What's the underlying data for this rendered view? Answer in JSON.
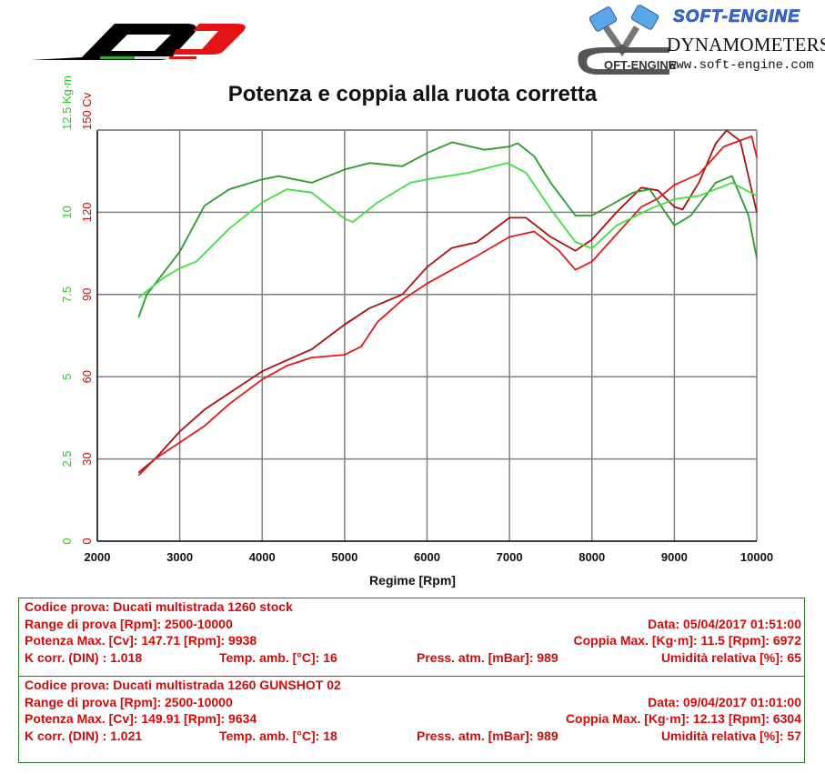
{
  "header": {
    "left_logo": "qd-exhaust-logo",
    "right_logo": {
      "brand": "SOFT-ENGINE",
      "subtitle": "DYNAMOMETERS",
      "url": "www.soft-engine.com",
      "emblem": "piston-v-engine-icon"
    }
  },
  "chart_data": {
    "type": "line",
    "title": "Potenza e coppia alla ruota corretta",
    "xlabel": "Regime [Rpm]",
    "ylabel_left_power": "Cv",
    "ylabel_left_torque": "Kg·m",
    "xlim": [
      2000,
      10000
    ],
    "ylim_power": [
      0,
      150
    ],
    "ylim_torque": [
      0,
      12.5
    ],
    "x_ticks": [
      2000,
      3000,
      4000,
      5000,
      6000,
      7000,
      8000,
      9000,
      10000
    ],
    "power_ticks": [
      0,
      30,
      60,
      90,
      120,
      150
    ],
    "torque_ticks": [
      0,
      2.5,
      5,
      7.5,
      10,
      12.5
    ],
    "grid": true,
    "colors": {
      "power_stock": "#e01a1a",
      "power_gunshot": "#a80f0f",
      "torque_stock": "#3ee03e",
      "torque_gunshot": "#2a9a2a",
      "torque_axis": "#22cc22",
      "power_axis": "#d10a0a"
    },
    "series": [
      {
        "name": "Potenza - Ducati multistrada 1260 GUNSHOT 02",
        "unit": "Cv",
        "x": [
          2500,
          2700,
          3000,
          3300,
          3600,
          4000,
          4300,
          4600,
          5000,
          5300,
          5700,
          6000,
          6300,
          6600,
          7000,
          7200,
          7500,
          7800,
          8000,
          8300,
          8600,
          8800,
          9000,
          9100,
          9300,
          9500,
          9634,
          9800,
          10000
        ],
        "values": [
          25,
          30,
          40,
          48,
          54,
          62,
          66,
          70,
          79,
          85,
          90,
          100,
          107,
          109,
          118,
          118,
          111,
          106,
          110,
          120,
          129,
          128,
          122,
          121,
          131,
          145,
          149.9,
          146,
          120
        ]
      },
      {
        "name": "Potenza - Ducati multistrada 1260 stock",
        "unit": "Cv",
        "x": [
          2500,
          2700,
          3000,
          3300,
          3600,
          4000,
          4300,
          4600,
          5000,
          5200,
          5400,
          5700,
          6000,
          6300,
          6600,
          7000,
          7300,
          7600,
          7800,
          8000,
          8300,
          8600,
          8800,
          9000,
          9300,
          9600,
          9938,
          10000
        ],
        "values": [
          24,
          30,
          36,
          42,
          50,
          59,
          64,
          67,
          68,
          71,
          80,
          88,
          94,
          99,
          104,
          111,
          113,
          106,
          99,
          102,
          112,
          122,
          125,
          130,
          134,
          144,
          147.7,
          140
        ]
      },
      {
        "name": "Coppia - Ducati multistrada 1260 GUNSHOT 02",
        "unit": "Kg·m",
        "x": [
          2500,
          2600,
          3000,
          3300,
          3600,
          4000,
          4200,
          4600,
          5000,
          5300,
          5700,
          6000,
          6304,
          6700,
          7000,
          7100,
          7300,
          7500,
          7800,
          8000,
          8500,
          8700,
          9000,
          9200,
          9500,
          9700,
          9900,
          10000
        ],
        "values": [
          6.8,
          7.5,
          8.8,
          10.2,
          10.7,
          11.0,
          11.1,
          10.9,
          11.3,
          11.5,
          11.4,
          11.8,
          12.13,
          11.9,
          12.0,
          12.1,
          11.7,
          10.9,
          9.9,
          9.9,
          10.6,
          10.7,
          9.6,
          9.9,
          10.9,
          11.1,
          9.9,
          8.6
        ]
      },
      {
        "name": "Coppia - Ducati multistrada 1260 stock",
        "unit": "Kg·m",
        "x": [
          2500,
          2800,
          3000,
          3200,
          3600,
          4000,
          4300,
          4600,
          5000,
          5100,
          5400,
          5800,
          6000,
          6500,
          6972,
          7200,
          7500,
          7800,
          8000,
          8300,
          8700,
          9000,
          9300,
          9700,
          10000
        ],
        "values": [
          7.4,
          8.0,
          8.3,
          8.5,
          9.5,
          10.3,
          10.7,
          10.6,
          9.8,
          9.7,
          10.3,
          10.9,
          11.0,
          11.2,
          11.5,
          11.2,
          10.1,
          9.1,
          8.9,
          9.6,
          10.1,
          10.4,
          10.5,
          10.9,
          10.5
        ]
      }
    ]
  },
  "tests": [
    {
      "codice": "Codice prova: Ducati multistrada 1260 stock",
      "range": "Range di prova [Rpm]: 2500-10000",
      "data": "Data: 05/04/2017   01:51:00",
      "potenza": "Potenza Max. [Cv]: 147.71   [Rpm]: 9938",
      "coppia": "Coppia Max. [Kg·m]: 11.5   [Rpm]: 6972",
      "kcorr": "K corr. (DIN) : 1.018",
      "temp": "Temp. amb. [°C]: 16",
      "press": "Press. atm. [mBar]: 989",
      "umid": "Umidità relativa [%]: 65"
    },
    {
      "codice": "Codice prova: Ducati multistrada 1260 GUNSHOT 02",
      "range": "Range di prova [Rpm]: 2500-10000",
      "data": "Data: 09/04/2017   01:01:00",
      "potenza": "Potenza Max. [Cv]: 149.91   [Rpm]: 9634",
      "coppia": "Coppia Max. [Kg·m]: 12.13   [Rpm]: 6304",
      "kcorr": "K corr. (DIN) : 1.021",
      "temp": "Temp. amb. [°C]: 18",
      "press": "Press. atm. [mBar]: 989",
      "umid": "Umidità relativa [%]: 57"
    }
  ]
}
